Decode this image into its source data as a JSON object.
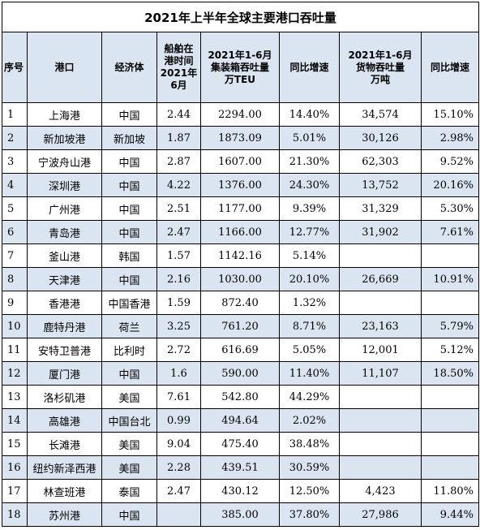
{
  "title": "2021年上半年全球主要港口吞吐量",
  "headers": {
    "no": "序号",
    "port": "港口",
    "economy": "经济体",
    "wait": [
      "船舶在",
      "港时间",
      "2021年",
      "6月"
    ],
    "teu": [
      "2021年1-6月",
      "集装箱吞吐量",
      "万TEU"
    ],
    "teu_growth": "同比增速",
    "cargo": [
      "2021年1-6月",
      "货物吞吐量",
      "万吨"
    ],
    "cargo_growth": "同比增速"
  },
  "rows": [
    {
      "no": "1",
      "port": "上海港",
      "economy": "中国",
      "wait": "2.44",
      "teu": "2294.00",
      "teu_growth": "14.40%",
      "cargo": "34,574",
      "cargo_growth": "15.10%"
    },
    {
      "no": "2",
      "port": "新加坡港",
      "economy": "新加坡",
      "wait": "1.87",
      "teu": "1873.09",
      "teu_growth": "5.01%",
      "cargo": "30,126",
      "cargo_growth": "2.98%"
    },
    {
      "no": "3",
      "port": "宁波舟山港",
      "economy": "中国",
      "wait": "2.87",
      "teu": "1607.00",
      "teu_growth": "21.30%",
      "cargo": "62,303",
      "cargo_growth": "9.52%"
    },
    {
      "no": "4",
      "port": "深圳港",
      "economy": "中国",
      "wait": "4.22",
      "teu": "1376.00",
      "teu_growth": "24.30%",
      "cargo": "13,752",
      "cargo_growth": "20.16%"
    },
    {
      "no": "5",
      "port": "广州港",
      "economy": "中国",
      "wait": "2.51",
      "teu": "1177.00",
      "teu_growth": "9.39%",
      "cargo": "31,329",
      "cargo_growth": "5.30%"
    },
    {
      "no": "6",
      "port": "青岛港",
      "economy": "中国",
      "wait": "2.47",
      "teu": "1166.00",
      "teu_growth": "12.77%",
      "cargo": "31,902",
      "cargo_growth": "7.61%"
    },
    {
      "no": "7",
      "port": "釜山港",
      "economy": "韩国",
      "wait": "1.57",
      "teu": "1142.16",
      "teu_growth": "5.14%",
      "cargo": "",
      "cargo_growth": ""
    },
    {
      "no": "8",
      "port": "天津港",
      "economy": "中国",
      "wait": "2.16",
      "teu": "1030.00",
      "teu_growth": "20.10%",
      "cargo": "26,669",
      "cargo_growth": "10.91%"
    },
    {
      "no": "9",
      "port": "香港港",
      "economy": "中国香港",
      "wait": "1.59",
      "teu": "872.40",
      "teu_growth": "1.32%",
      "cargo": "",
      "cargo_growth": ""
    },
    {
      "no": "10",
      "port": "鹿特丹港",
      "economy": "荷兰",
      "wait": "3.25",
      "teu": "761.20",
      "teu_growth": "8.71%",
      "cargo": "23,163",
      "cargo_growth": "5.79%"
    },
    {
      "no": "11",
      "port": "安特卫普港",
      "economy": "比利时",
      "wait": "2.72",
      "teu": "616.69",
      "teu_growth": "5.05%",
      "cargo": "12,001",
      "cargo_growth": "5.12%"
    },
    {
      "no": "12",
      "port": "厦门港",
      "economy": "中国",
      "wait": "1.6",
      "teu": "590.00",
      "teu_growth": "11.40%",
      "cargo": "11,107",
      "cargo_growth": "18.50%"
    },
    {
      "no": "13",
      "port": "洛杉矶港",
      "economy": "美国",
      "wait": "7.61",
      "teu": "542.80",
      "teu_growth": "44.29%",
      "cargo": "",
      "cargo_growth": ""
    },
    {
      "no": "14",
      "port": "高雄港",
      "economy": "中国台北",
      "wait": "0.99",
      "teu": "494.64",
      "teu_growth": "2.02%",
      "cargo": "",
      "cargo_growth": ""
    },
    {
      "no": "15",
      "port": "长滩港",
      "economy": "美国",
      "wait": "9.04",
      "teu": "475.40",
      "teu_growth": "38.48%",
      "cargo": "",
      "cargo_growth": ""
    },
    {
      "no": "16",
      "port": "纽约新泽西港",
      "economy": "美国",
      "wait": "2.28",
      "teu": "439.51",
      "teu_growth": "30.59%",
      "cargo": "",
      "cargo_growth": ""
    },
    {
      "no": "17",
      "port": "林查班港",
      "economy": "泰国",
      "wait": "2.47",
      "teu": "430.12",
      "teu_growth": "12.50%",
      "cargo": "4,423",
      "cargo_growth": "11.80%"
    },
    {
      "no": "18",
      "port": "苏州港",
      "economy": "中国",
      "wait": "",
      "teu": "385.00",
      "teu_growth": "37.80%",
      "cargo": "27,986",
      "cargo_growth": "9.44%"
    }
  ]
}
